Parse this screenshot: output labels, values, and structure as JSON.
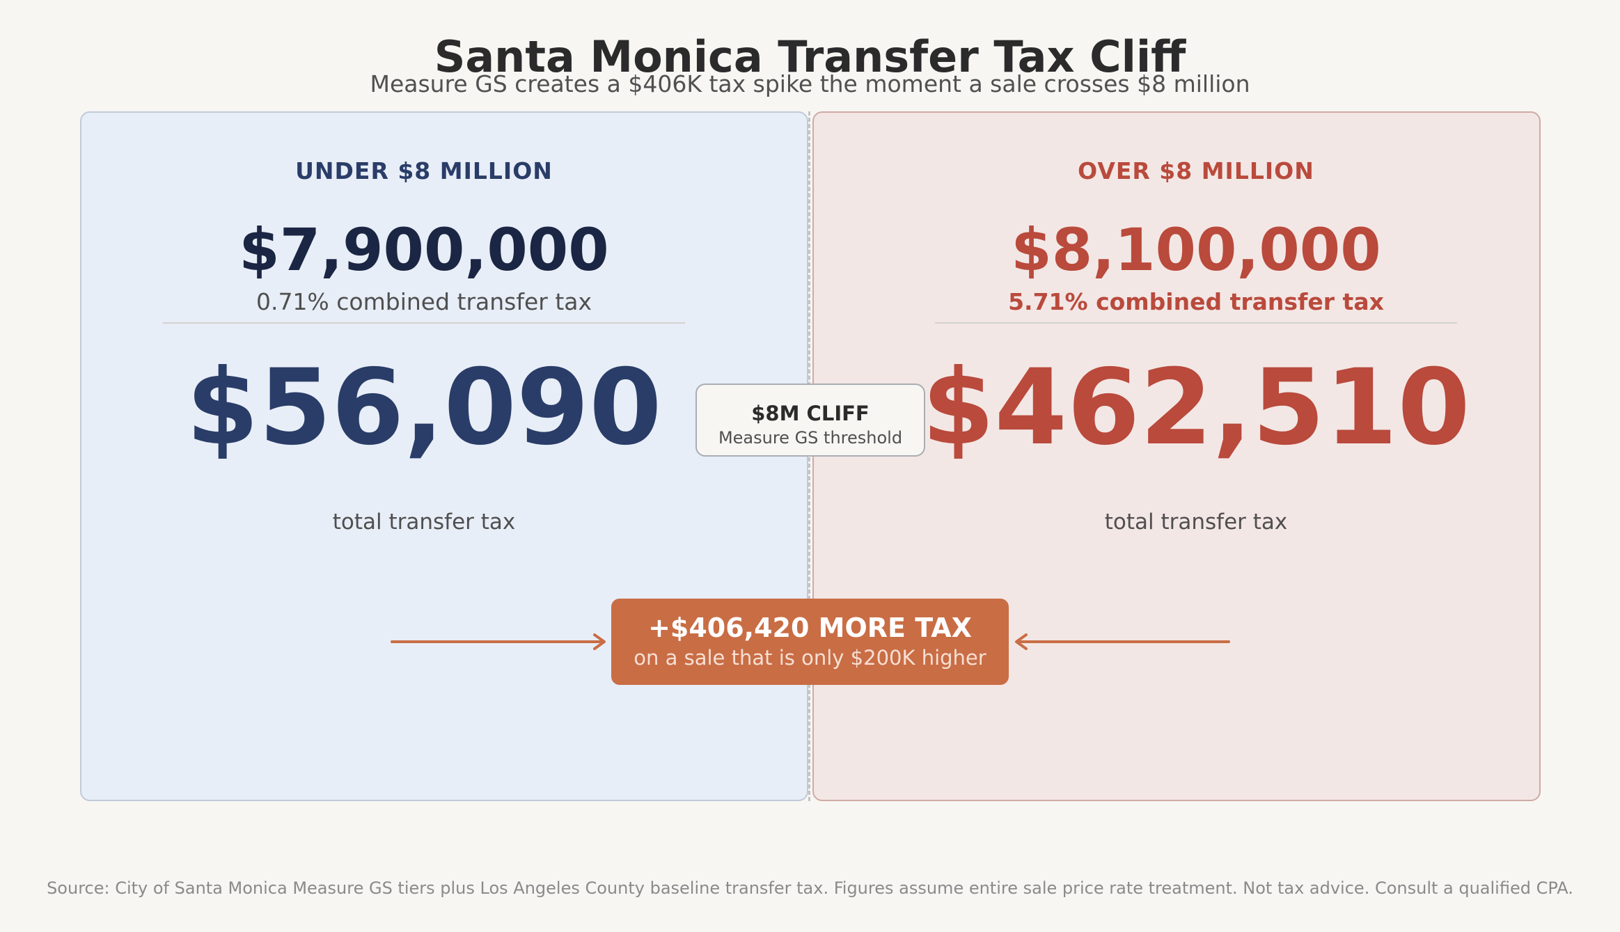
{
  "title": "Santa Monica Transfer Tax Cliff",
  "subtitle": "Measure GS creates a $406K tax spike the moment a sale crosses $8 million",
  "left": {
    "heading": "UNDER  $8 MILLION",
    "price": "$7,900,000",
    "rate": "0.71% combined transfer tax",
    "tax": "$56,090",
    "caption": "total transfer tax"
  },
  "right": {
    "heading": "OVER  $8 MILLION",
    "price": "$8,100,000",
    "rate": "5.71% combined transfer tax",
    "tax": "$462,510",
    "caption": "total transfer tax"
  },
  "cliff": {
    "title": "$8M CLIFF",
    "subtitle": "Measure GS threshold"
  },
  "callout": {
    "main": "+$406,420 MORE TAX",
    "sub": "on a sale that is only $200K higher"
  },
  "source": "Source: City of Santa Monica Measure GS tiers plus Los Angeles County baseline transfer tax. Figures assume entire sale price rate treatment. Not tax advice. Consult a qualified CPA.",
  "colors": {
    "navy": "#2a3d68",
    "dark_navy": "#1a2643",
    "red": "#b94a3c",
    "accent": "#c96d45"
  }
}
